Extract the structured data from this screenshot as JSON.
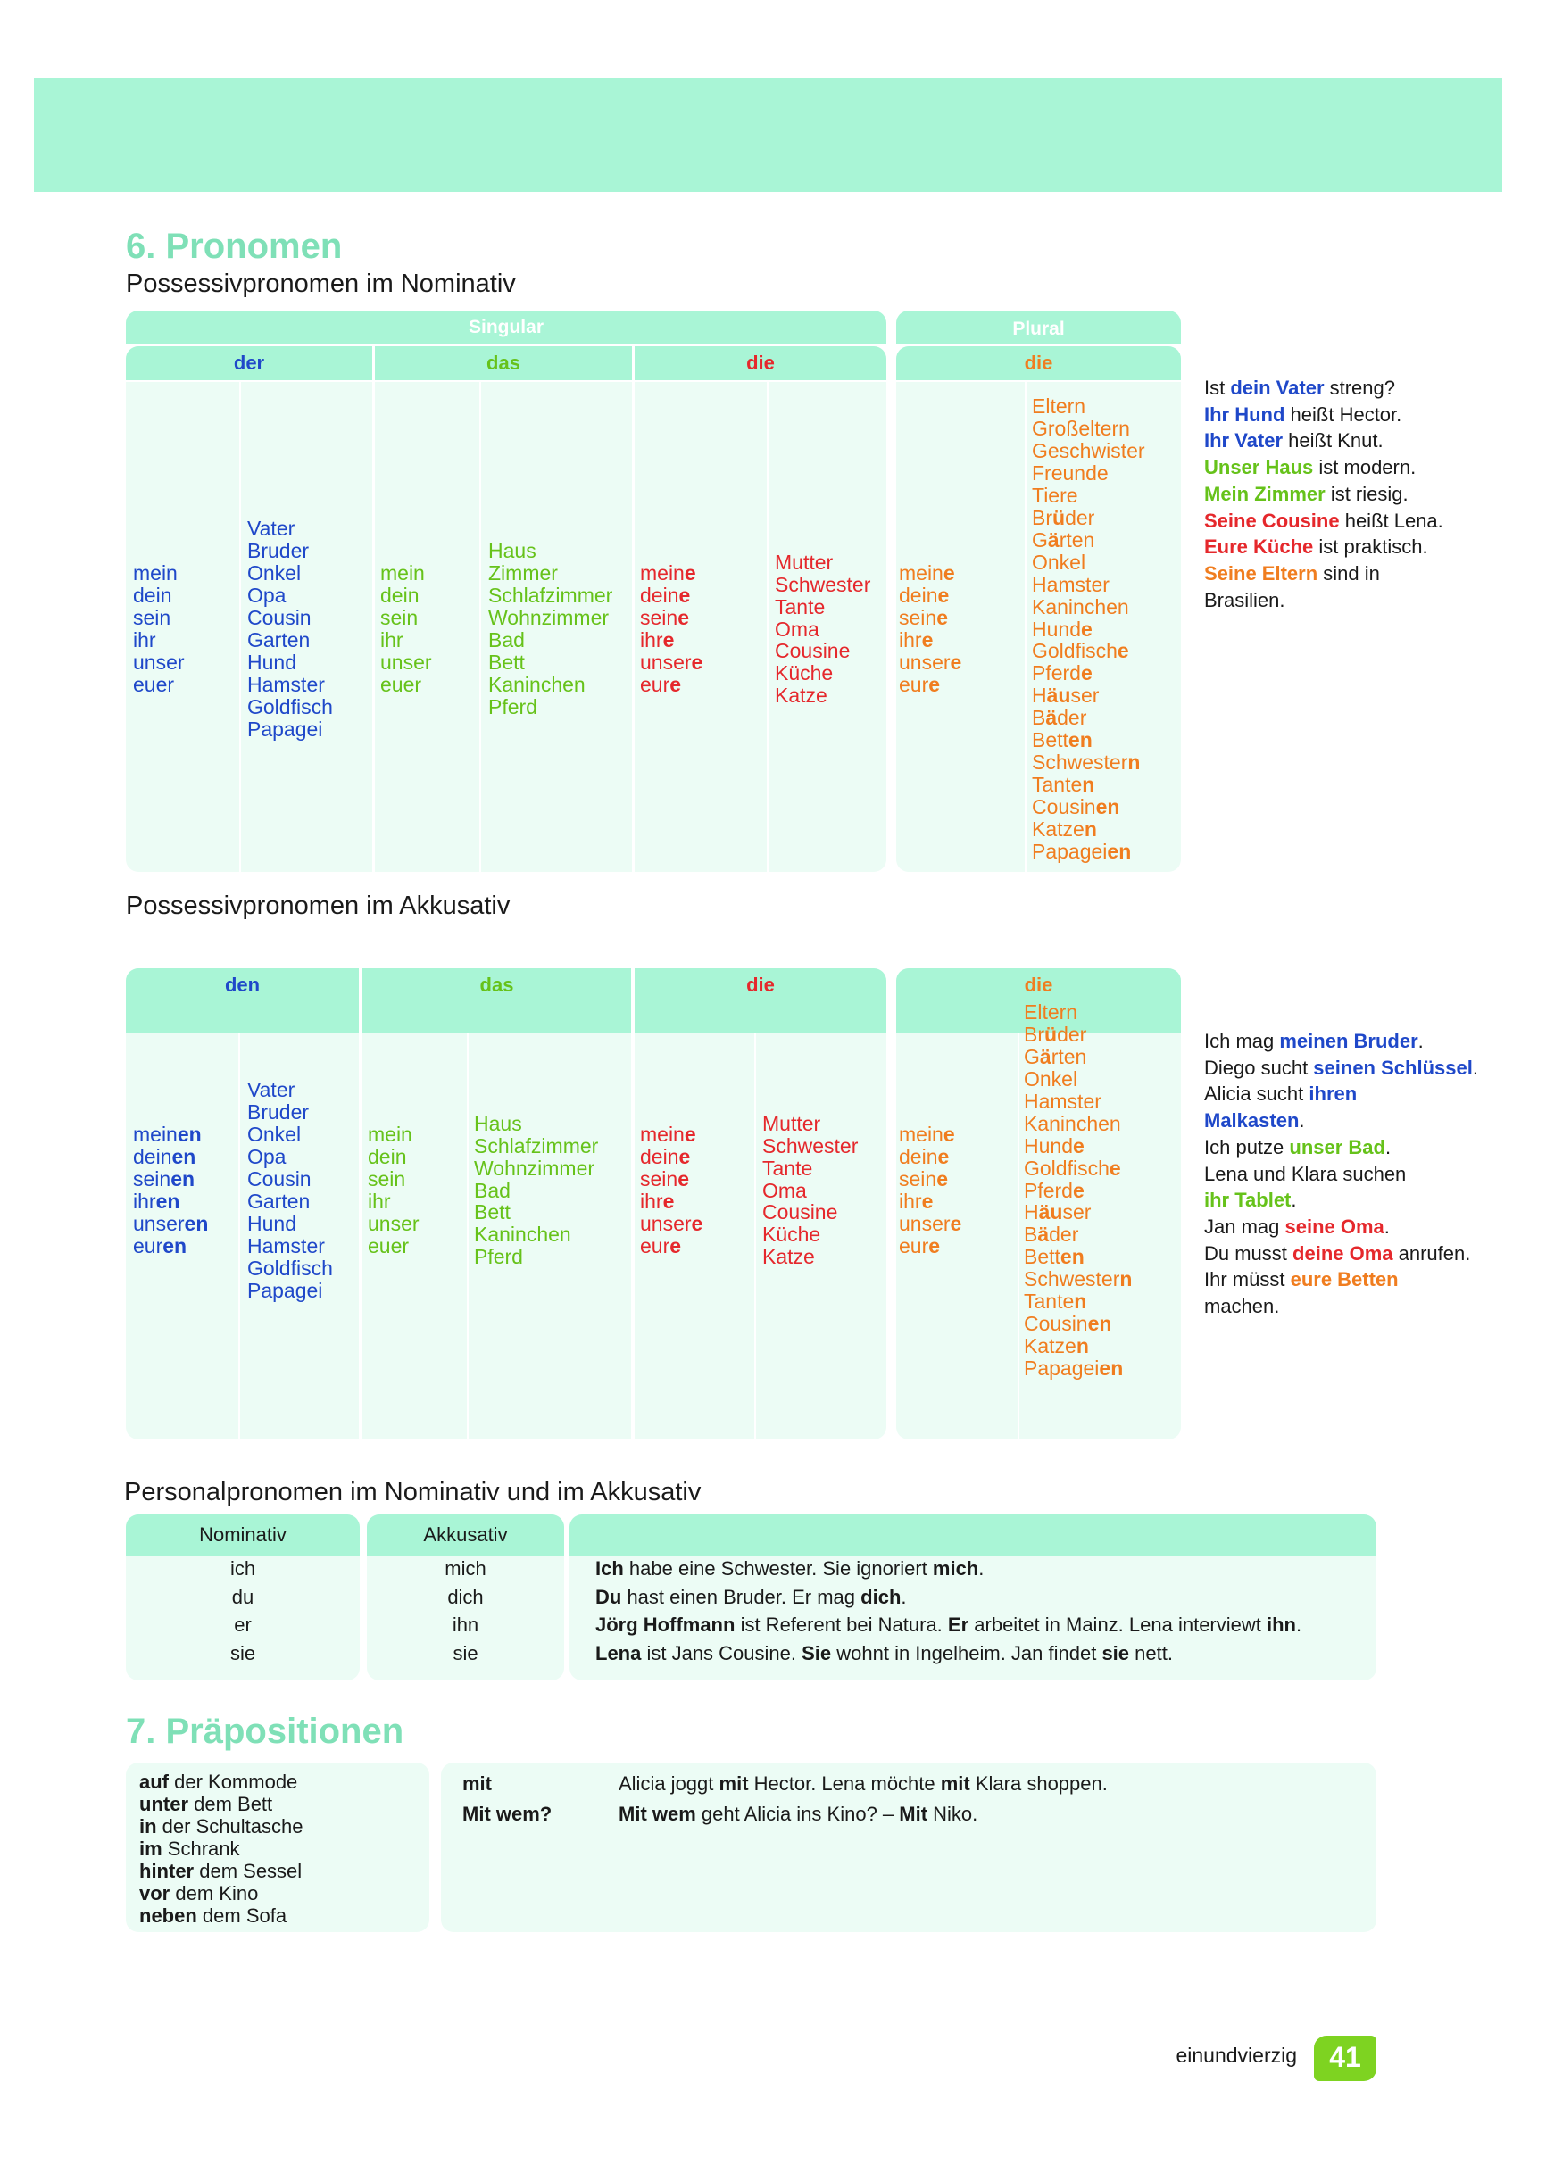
{
  "pronomen": {
    "title": "6. Pronomen",
    "nominativ": {
      "title": "Possessivpronomen im Nominativ",
      "singular_label": "Singular",
      "plural_label": "Plural",
      "groups": [
        {
          "article": "der",
          "color": "#1f48c9",
          "pronouns": [
            "mein",
            "dein",
            "sein",
            "ihr",
            "unser",
            "euer"
          ],
          "nouns": [
            "Vater",
            "Bruder",
            "Onkel",
            "Opa",
            "Cousin",
            "Garten",
            "Hund",
            "Hamster",
            "Goldfisch",
            "Papagei"
          ]
        },
        {
          "article": "das",
          "color": "#66c21a",
          "pronouns": [
            "mein",
            "dein",
            "sein",
            "ihr",
            "unser",
            "euer"
          ],
          "nouns": [
            "Haus",
            "Zimmer",
            "Schlafzimmer",
            "Wohnzimmer",
            "Bad",
            "Bett",
            "Kaninchen",
            "Pferd"
          ]
        },
        {
          "article": "die",
          "color": "#e5282c",
          "pronouns": [
            [
              "mein",
              {
                "b": "e"
              }
            ],
            [
              "dein",
              {
                "b": "e"
              }
            ],
            [
              "sein",
              {
                "b": "e"
              }
            ],
            [
              "ihr",
              {
                "b": "e"
              }
            ],
            [
              "unser",
              {
                "b": "e"
              }
            ],
            [
              "eur",
              {
                "b": "e"
              }
            ]
          ],
          "nouns": [
            "Mutter",
            "Schwester",
            "Tante",
            "Oma",
            "Cousine",
            "Küche",
            "Katze"
          ]
        },
        {
          "article": "die",
          "color": "#f07d1f",
          "pronouns": [
            [
              "mein",
              {
                "b": "e"
              }
            ],
            [
              "dein",
              {
                "b": "e"
              }
            ],
            [
              "sein",
              {
                "b": "e"
              }
            ],
            [
              "ihr",
              {
                "b": "e"
              }
            ],
            [
              "unser",
              {
                "b": "e"
              }
            ],
            [
              "eur",
              {
                "b": "e"
              }
            ]
          ],
          "nouns": [
            "Eltern",
            "Großeltern",
            "Geschwister",
            "Freunde",
            "Tiere",
            [
              "Br",
              {
                "b": "ü"
              },
              "der"
            ],
            [
              "G",
              {
                "b": "ä"
              },
              "rten"
            ],
            "Onkel",
            "Hamster",
            "Kaninchen",
            [
              "Hund",
              {
                "b": "e"
              }
            ],
            [
              "Goldfisch",
              {
                "b": "e"
              }
            ],
            [
              "Pferd",
              {
                "b": "e"
              }
            ],
            [
              "H",
              {
                "b": "äu"
              },
              "ser"
            ],
            [
              "B",
              {
                "b": "ä"
              },
              "der"
            ],
            [
              "Bett",
              {
                "b": "en"
              }
            ],
            [
              "Schwester",
              {
                "b": "n"
              }
            ],
            [
              "Tante",
              {
                "b": "n"
              }
            ],
            [
              "Cousin",
              {
                "b": "en"
              }
            ],
            [
              "Katze",
              {
                "b": "n"
              }
            ],
            [
              "Papagei",
              {
                "b": "en"
              }
            ]
          ]
        }
      ],
      "examples": [
        [
          "Ist ",
          {
            "b": "dein Vater",
            "color": "#1f48c9"
          },
          " streng?"
        ],
        [
          {
            "b": "Ihr Hund",
            "color": "#1f48c9"
          },
          " heißt Hector."
        ],
        [
          {
            "b": "Ihr Vater",
            "color": "#1f48c9"
          },
          " heißt Knut."
        ],
        [
          {
            "b": "Unser Haus",
            "color": "#66c21a"
          },
          " ist modern."
        ],
        [
          {
            "b": "Mein Zimmer",
            "color": "#66c21a"
          },
          " ist riesig."
        ],
        [
          {
            "b": "Seine Cousine",
            "color": "#e5282c"
          },
          " heißt Lena."
        ],
        [
          {
            "b": "Eure Küche",
            "color": "#e5282c"
          },
          " ist praktisch."
        ],
        [
          {
            "b": "Seine Eltern",
            "color": "#f07d1f"
          },
          " sind in"
        ],
        [
          "Brasilien."
        ]
      ]
    },
    "akkusativ": {
      "title": "Possessivpronomen im Akkusativ",
      "groups": [
        {
          "article": "den",
          "color": "#1f48c9",
          "pronouns": [
            [
              "mein",
              {
                "b": "en"
              }
            ],
            [
              "dein",
              {
                "b": "en"
              }
            ],
            [
              "sein",
              {
                "b": "en"
              }
            ],
            [
              "ihr",
              {
                "b": "en"
              }
            ],
            [
              "unser",
              {
                "b": "en"
              }
            ],
            [
              "eur",
              {
                "b": "en"
              }
            ]
          ],
          "nouns": [
            "Vater",
            "Bruder",
            "Onkel",
            "Opa",
            "Cousin",
            "Garten",
            "Hund",
            "Hamster",
            "Goldfisch",
            "Papagei"
          ]
        },
        {
          "article": "das",
          "color": "#66c21a",
          "pronouns": [
            "mein",
            "dein",
            "sein",
            "ihr",
            "unser",
            "euer"
          ],
          "nouns": [
            "Haus",
            "Schlafzimmer",
            "Wohnzimmer",
            "Bad",
            "Bett",
            "Kaninchen",
            "Pferd"
          ]
        },
        {
          "article": "die",
          "color": "#e5282c",
          "pronouns": [
            [
              "mein",
              {
                "b": "e"
              }
            ],
            [
              "dein",
              {
                "b": "e"
              }
            ],
            [
              "sein",
              {
                "b": "e"
              }
            ],
            [
              "ihr",
              {
                "b": "e"
              }
            ],
            [
              "unser",
              {
                "b": "e"
              }
            ],
            [
              "eur",
              {
                "b": "e"
              }
            ]
          ],
          "nouns": [
            "Mutter",
            "Schwester",
            "Tante",
            "Oma",
            "Cousine",
            "Küche",
            "Katze"
          ]
        },
        {
          "article": "die",
          "color": "#f07d1f",
          "pronouns": [
            [
              "mein",
              {
                "b": "e"
              }
            ],
            [
              "dein",
              {
                "b": "e"
              }
            ],
            [
              "sein",
              {
                "b": "e"
              }
            ],
            [
              "ihr",
              {
                "b": "e"
              }
            ],
            [
              "unser",
              {
                "b": "e"
              }
            ],
            [
              "eur",
              {
                "b": "e"
              }
            ]
          ],
          "nouns": [
            "Eltern",
            [
              "Br",
              {
                "b": "ü"
              },
              "der"
            ],
            [
              "G",
              {
                "b": "ä"
              },
              "rten"
            ],
            "Onkel",
            "Hamster",
            "Kaninchen",
            [
              "Hund",
              {
                "b": "e"
              }
            ],
            [
              "Goldfisch",
              {
                "b": "e"
              }
            ],
            [
              "Pferd",
              {
                "b": "e"
              }
            ],
            [
              "H",
              {
                "b": "äu"
              },
              "ser"
            ],
            [
              "B",
              {
                "b": "ä"
              },
              "der"
            ],
            [
              "Bett",
              {
                "b": "en"
              }
            ],
            [
              "Schwester",
              {
                "b": "n"
              }
            ],
            [
              "Tante",
              {
                "b": "n"
              }
            ],
            [
              "Cousin",
              {
                "b": "en"
              }
            ],
            [
              "Katze",
              {
                "b": "n"
              }
            ],
            [
              "Papagei",
              {
                "b": "en"
              }
            ]
          ]
        }
      ],
      "examples": [
        [
          "Ich mag ",
          {
            "b": "meinen Bruder",
            "color": "#1f48c9"
          },
          "."
        ],
        [
          "Diego sucht ",
          {
            "b": "seinen Schlüssel",
            "color": "#1f48c9"
          },
          "."
        ],
        [
          "Alicia sucht ",
          {
            "b": "ihren",
            "color": "#1f48c9"
          }
        ],
        [
          {
            "b": "Malkasten",
            "color": "#1f48c9"
          },
          "."
        ],
        [
          "Ich putze ",
          {
            "b": "unser Bad",
            "color": "#66c21a"
          },
          "."
        ],
        [
          "Lena und Klara suchen"
        ],
        [
          {
            "b": "ihr Tablet",
            "color": "#66c21a"
          },
          "."
        ],
        [
          "Jan mag ",
          {
            "b": "seine Oma",
            "color": "#e5282c"
          },
          "."
        ],
        [
          "Du musst ",
          {
            "b": "deine Oma",
            "color": "#e5282c"
          },
          " anrufen."
        ],
        [
          "Ihr müsst ",
          {
            "b": "eure Betten",
            "color": "#f07d1f"
          }
        ],
        [
          "machen."
        ]
      ]
    },
    "personal": {
      "title": "Personalpronomen im Nominativ und im Akkusativ",
      "headers": [
        "Nominativ",
        "Akkusativ"
      ],
      "rows": [
        {
          "nom": "ich",
          "akk": "mich",
          "example": [
            {
              "b": "Ich"
            },
            " habe eine Schwester. Sie ignoriert ",
            {
              "b": "mich"
            },
            "."
          ]
        },
        {
          "nom": "du",
          "akk": "dich",
          "example": [
            {
              "b": "Du"
            },
            " hast einen Bruder. Er mag ",
            {
              "b": "dich"
            },
            "."
          ]
        },
        {
          "nom": "er",
          "akk": "ihn",
          "example": [
            {
              "b": "Jörg Hoffmann"
            },
            " ist Referent bei Natura. ",
            {
              "b": "Er"
            },
            " arbeitet in Mainz. Lena interviewt ",
            {
              "b": "ihn"
            },
            "."
          ]
        },
        {
          "nom": "sie",
          "akk": "sie",
          "example": [
            {
              "b": "Lena"
            },
            " ist Jans Cousine. ",
            {
              "b": "Sie"
            },
            " wohnt in Ingelheim. Jan findet ",
            {
              "b": "sie"
            },
            " nett."
          ]
        }
      ]
    }
  },
  "praepositionen": {
    "title": "7. Präpositionen",
    "list": [
      [
        {
          "b": "auf"
        },
        " der Kommode"
      ],
      [
        {
          "b": "unter"
        },
        " dem Bett"
      ],
      [
        {
          "b": "in"
        },
        " der Schultasche"
      ],
      [
        {
          "b": "im"
        },
        " Schrank"
      ],
      [
        {
          "b": "hinter"
        },
        " dem Sessel"
      ],
      [
        {
          "b": "vor"
        },
        " dem Kino"
      ],
      [
        {
          "b": "neben"
        },
        " dem Sofa"
      ]
    ],
    "examples": [
      {
        "word": "mit",
        "sentence": [
          "Alicia joggt ",
          {
            "b": "mit"
          },
          " Hector. Lena möchte ",
          {
            "b": "mit"
          },
          " Klara shoppen."
        ]
      },
      {
        "word": "Mit wem?",
        "sentence": [
          {
            "b": "Mit wem"
          },
          " geht Alicia ins Kino? – ",
          {
            "b": "Mit"
          },
          " Niko."
        ]
      }
    ]
  },
  "footer": {
    "page_word": "einundvierzig",
    "page_number": 41
  }
}
